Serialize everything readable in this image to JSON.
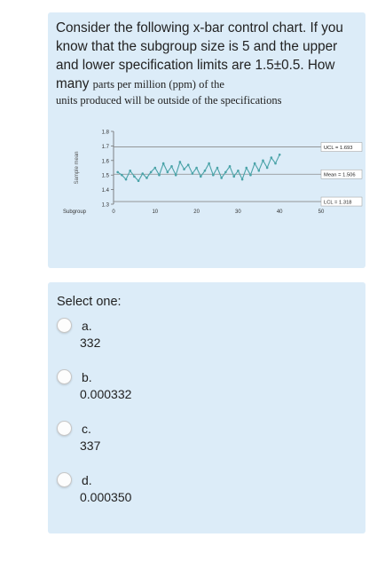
{
  "question": {
    "line1": "Consider the following x-bar control chart. If you know that the subgroup size is 5 and the upper and lower specification limits are 1.5±0.5. How many ",
    "line1_serif": "parts per million (ppm) of the",
    "line2": "units produced will be outside of the specifications"
  },
  "chart_data": {
    "type": "line",
    "ylabel": "Sample mean",
    "xlabel": "Subgroup",
    "x_ticks": [
      "0",
      "10",
      "20",
      "30",
      "40",
      "50"
    ],
    "y_ticks": [
      "1.3",
      "1.4",
      "1.5",
      "1.6",
      "1.7",
      "1.8"
    ],
    "ylim": [
      1.3,
      1.8
    ],
    "xlim": [
      0,
      50
    ],
    "control_lines": [
      {
        "label": "UCL = 1.693",
        "value": 1.693
      },
      {
        "label": "Mean = 1.506",
        "value": 1.506
      },
      {
        "label": "LCL = 1.318",
        "value": 1.318
      }
    ],
    "series": [
      {
        "x": [
          1,
          2,
          3,
          4,
          5,
          6,
          7,
          8,
          9,
          10,
          11,
          12,
          13,
          14,
          15,
          16,
          17,
          18,
          19,
          20,
          21,
          22,
          23,
          24,
          25,
          26,
          27,
          28,
          29,
          30,
          31,
          32,
          33,
          34,
          35,
          36,
          37,
          38,
          39,
          40
        ],
        "values": [
          1.52,
          1.5,
          1.47,
          1.53,
          1.49,
          1.46,
          1.51,
          1.48,
          1.52,
          1.55,
          1.5,
          1.58,
          1.52,
          1.56,
          1.5,
          1.59,
          1.54,
          1.57,
          1.51,
          1.55,
          1.49,
          1.53,
          1.58,
          1.5,
          1.55,
          1.48,
          1.52,
          1.56,
          1.49,
          1.53,
          1.47,
          1.55,
          1.5,
          1.58,
          1.53,
          1.6,
          1.55,
          1.62,
          1.58,
          1.64
        ]
      }
    ]
  },
  "answers": {
    "prompt": "Select one:",
    "options": [
      {
        "letter": "a.",
        "value": "332"
      },
      {
        "letter": "b.",
        "value": "0.000332"
      },
      {
        "letter": "c.",
        "value": "337"
      },
      {
        "letter": "d.",
        "value": "0.000350"
      }
    ]
  },
  "colors": {
    "panel": "#dcecf8",
    "series": "#4aa3a8"
  }
}
